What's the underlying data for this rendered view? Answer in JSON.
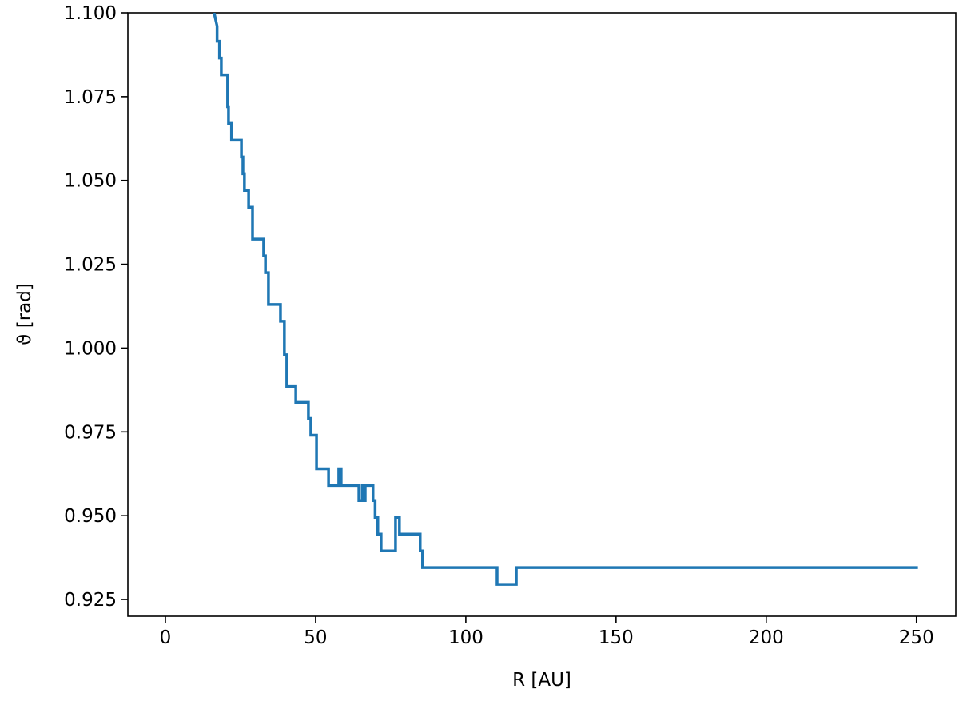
{
  "chart_data": {
    "type": "line",
    "xlabel": "R [AU]",
    "ylabel": "ϑ [rad]",
    "xlim": [
      -12.5,
      263.1
    ],
    "ylim": [
      0.92,
      1.1
    ],
    "xticks": [
      0,
      50,
      100,
      150,
      200,
      250
    ],
    "yticks": [
      0.925,
      {
        "value": 0.95,
        "label": "0.950"
      },
      0.975,
      {
        "value": 1.0,
        "label": "1.000"
      },
      1.025,
      {
        "value": 1.05,
        "label": "1.050"
      },
      1.075,
      {
        "value": 1.1,
        "label": "1.100"
      }
    ],
    "grid": false,
    "series": [
      {
        "color": "#1f77b4",
        "x": [
          16.2,
          17.2,
          17.2,
          18.0,
          18.0,
          18.6,
          18.6,
          20.7,
          20.7,
          21.0,
          21.0,
          22.0,
          22.0,
          25.3,
          25.3,
          25.8,
          25.8,
          26.3,
          26.3,
          27.7,
          27.7,
          29.0,
          29.0,
          32.7,
          32.7,
          33.3,
          33.3,
          34.3,
          34.3,
          38.3,
          38.3,
          39.6,
          39.6,
          40.4,
          40.4,
          43.4,
          43.4,
          47.6,
          47.6,
          48.4,
          48.4,
          50.3,
          50.3,
          54.3,
          54.3,
          57.7,
          57.7,
          58.5,
          58.5,
          64.4,
          64.4,
          65.5,
          65.5,
          66.0,
          66.0,
          66.5,
          66.5,
          69.1,
          69.1,
          69.8,
          69.8,
          70.7,
          70.7,
          71.8,
          71.8,
          76.6,
          76.6,
          77.9,
          77.9,
          84.8,
          84.8,
          85.6,
          85.6,
          110.4,
          110.4,
          116.8,
          116.8,
          250.5
        ],
        "values": [
          1.1,
          1.096,
          1.0915,
          1.0915,
          1.0865,
          1.0865,
          1.0815,
          1.0815,
          1.072,
          1.072,
          1.067,
          1.067,
          1.062,
          1.062,
          1.057,
          1.057,
          1.052,
          1.052,
          1.047,
          1.047,
          1.042,
          1.042,
          1.0325,
          1.0325,
          1.0275,
          1.0275,
          1.0225,
          1.0225,
          1.013,
          1.013,
          1.008,
          1.008,
          0.998,
          0.998,
          0.9885,
          0.9885,
          0.9838,
          0.9838,
          0.979,
          0.979,
          0.974,
          0.974,
          0.964,
          0.964,
          0.959,
          0.959,
          0.964,
          0.964,
          0.959,
          0.959,
          0.9545,
          0.9545,
          0.959,
          0.959,
          0.9545,
          0.9545,
          0.959,
          0.959,
          0.9545,
          0.9545,
          0.9495,
          0.9495,
          0.9445,
          0.9445,
          0.9395,
          0.9395,
          0.9495,
          0.9495,
          0.9445,
          0.9445,
          0.9395,
          0.9395,
          0.9345,
          0.9345,
          0.9295,
          0.9295,
          0.9345,
          0.9345
        ]
      }
    ]
  }
}
